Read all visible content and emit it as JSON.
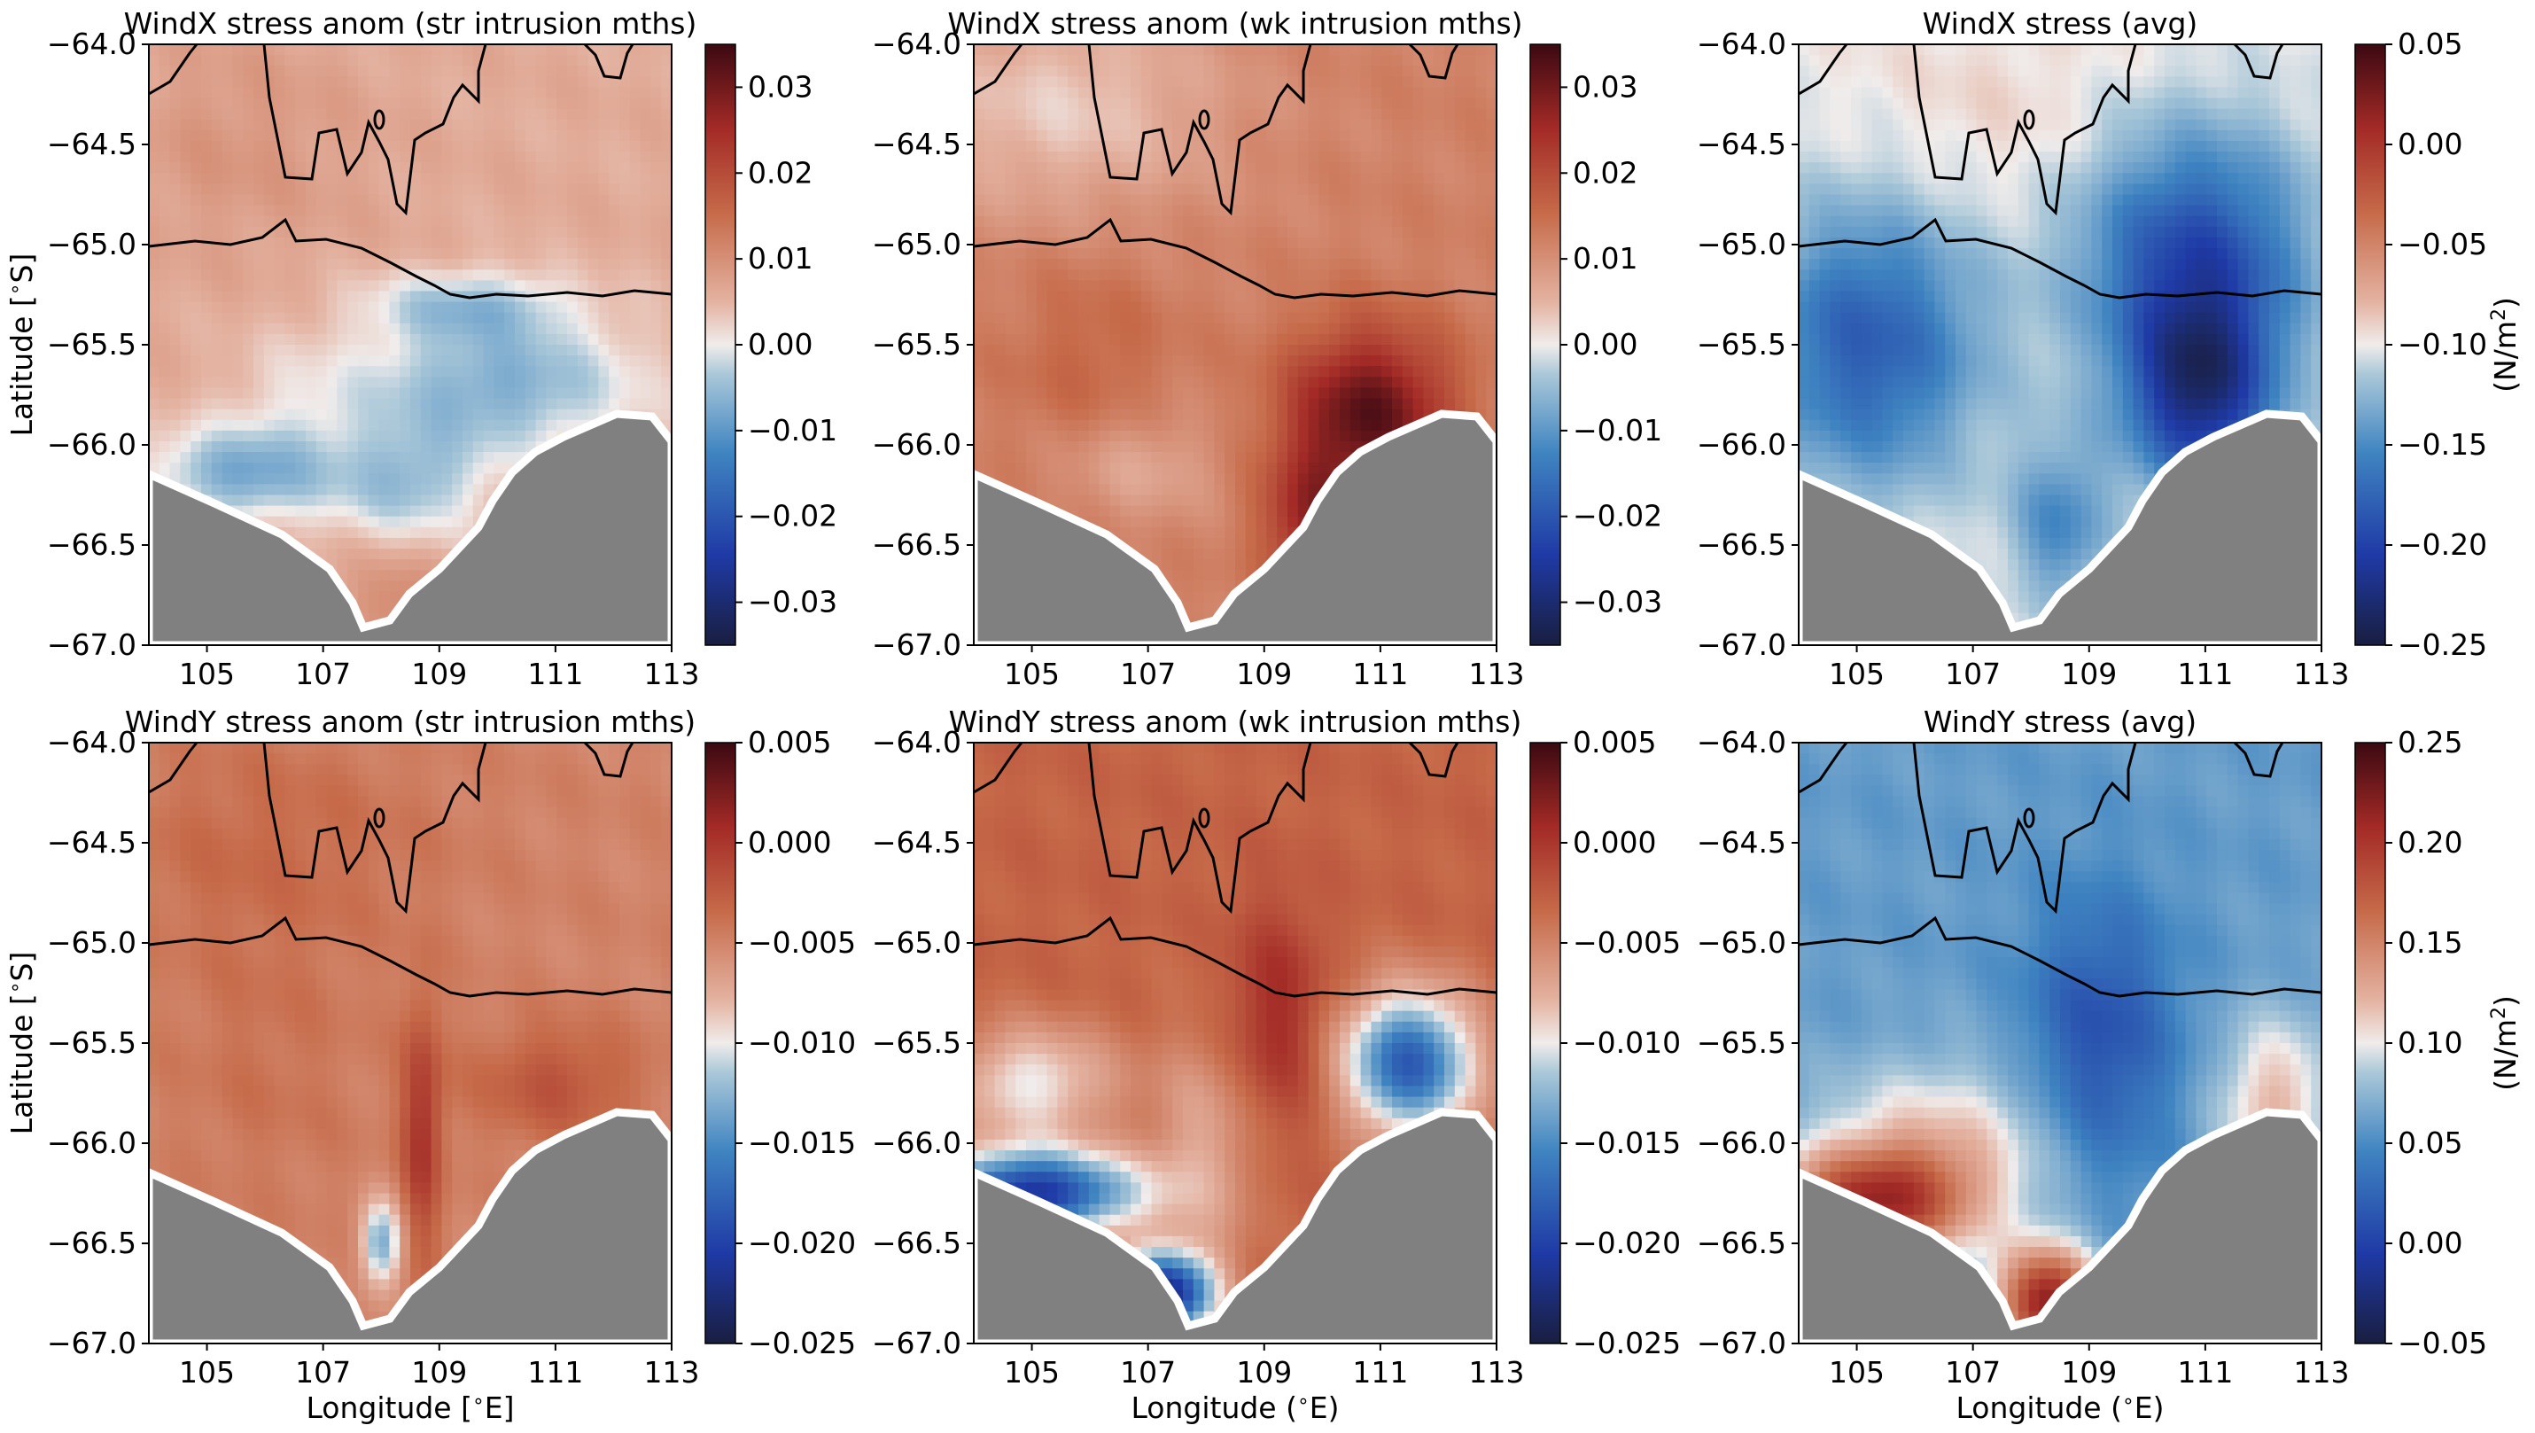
{
  "figure": {
    "land_color": "#808080",
    "coast_color": "#ffffff",
    "contour_color": "#000000",
    "colormap": "balance (navy-blue-white-red-maroon, diverging)"
  },
  "chart_data": [
    {
      "type": "heatmap",
      "title": "WindX stress anom (str intrusion mths)",
      "xlabel": "",
      "ylabel": "Latitude [$^\\circ$S]",
      "xlim": [
        104,
        113
      ],
      "ylim": [
        -67.0,
        -64.0
      ],
      "xticks": [
        "105",
        "107",
        "109",
        "111",
        "113"
      ],
      "yticks": [
        "−64.0",
        "−64.5",
        "−65.0",
        "−65.5",
        "−66.0",
        "−66.5",
        "−67.0"
      ],
      "colorbar": {
        "min": -0.035,
        "max": 0.035,
        "ticks": [
          "0.03",
          "0.02",
          "0.01",
          "0.00",
          "−0.01",
          "−0.02",
          "−0.03"
        ],
        "label": ""
      },
      "field": {
        "base": 0.006,
        "features": [
          {
            "x": 109.5,
            "y": -65.3,
            "amp": -0.009,
            "sx": 1.2,
            "sy": 0.12
          },
          {
            "x": 110.0,
            "y": -65.7,
            "amp": -0.013,
            "sx": 1.7,
            "sy": 0.25
          },
          {
            "x": 108.5,
            "y": -66.2,
            "amp": -0.01,
            "sx": 0.9,
            "sy": 0.2
          },
          {
            "x": 105.5,
            "y": -66.15,
            "amp": -0.012,
            "sx": 1.1,
            "sy": 0.16
          },
          {
            "x": 106.5,
            "y": -65.9,
            "amp": -0.004,
            "sx": 1.0,
            "sy": 0.3
          },
          {
            "x": 108.3,
            "y": -66.8,
            "amp": 0.005,
            "sx": 0.6,
            "sy": 0.2
          },
          {
            "x": 105.5,
            "y": -64.5,
            "amp": 0.003,
            "sx": 1.5,
            "sy": 0.4
          }
        ]
      }
    },
    {
      "type": "heatmap",
      "title": "WindX stress anom (wk intrusion mths)",
      "xlabel": "",
      "ylabel": "",
      "xlim": [
        104,
        113
      ],
      "ylim": [
        -67.0,
        -64.0
      ],
      "xticks": [
        "105",
        "107",
        "109",
        "111",
        "113"
      ],
      "yticks": [
        "−64.0",
        "−64.5",
        "−65.0",
        "−65.5",
        "−66.0",
        "−66.5",
        "−67.0"
      ],
      "colorbar": {
        "min": -0.035,
        "max": 0.035,
        "ticks": [
          "0.03",
          "0.02",
          "0.01",
          "0.00",
          "−0.01",
          "−0.02",
          "−0.03"
        ],
        "label": ""
      },
      "field": {
        "base": 0.012,
        "features": [
          {
            "x": 105.5,
            "y": -64.3,
            "amp": -0.009,
            "sx": 2.0,
            "sy": 0.4
          },
          {
            "x": 110.8,
            "y": -65.85,
            "amp": 0.02,
            "sx": 1.0,
            "sy": 0.3
          },
          {
            "x": 109.8,
            "y": -66.4,
            "amp": 0.013,
            "sx": 0.6,
            "sy": 0.25
          },
          {
            "x": 106.8,
            "y": -66.1,
            "amp": -0.006,
            "sx": 1.0,
            "sy": 0.2
          },
          {
            "x": 106.0,
            "y": -65.6,
            "amp": 0.004,
            "sx": 1.0,
            "sy": 0.4
          }
        ]
      }
    },
    {
      "type": "heatmap",
      "title": "WindX stress (avg)",
      "xlabel": "",
      "ylabel": "",
      "xlim": [
        104,
        113
      ],
      "ylim": [
        -67.0,
        -64.0
      ],
      "xticks": [
        "105",
        "107",
        "109",
        "111",
        "113"
      ],
      "yticks": [
        "−64.0",
        "−64.5",
        "−65.0",
        "−65.5",
        "−66.0",
        "−66.5",
        "−67.0"
      ],
      "colorbar": {
        "min": -0.25,
        "max": 0.05,
        "ticks": [
          "0.05",
          "0.00",
          "−0.05",
          "−0.10",
          "−0.15",
          "−0.20",
          "−0.25"
        ],
        "label": "(N/m$^2$)"
      },
      "field": {
        "base": -0.1,
        "features": [
          {
            "x": 110.8,
            "y": -65.05,
            "amp": -0.09,
            "sx": 1.4,
            "sy": 0.45
          },
          {
            "x": 110.9,
            "y": -65.75,
            "amp": -0.11,
            "sx": 0.9,
            "sy": 0.35
          },
          {
            "x": 105.2,
            "y": -65.5,
            "amp": -0.08,
            "sx": 1.4,
            "sy": 0.5
          },
          {
            "x": 108.5,
            "y": -66.4,
            "amp": -0.05,
            "sx": 0.6,
            "sy": 0.3
          },
          {
            "x": 107.5,
            "y": -64.4,
            "amp": 0.01,
            "sx": 2.0,
            "sy": 0.4
          }
        ]
      }
    },
    {
      "type": "heatmap",
      "title": "WindY stress anom (str intrusion mths)",
      "xlabel": "Longitude [$^\\circ$E]",
      "ylabel": "Latitude [$^\\circ$S]",
      "xlim": [
        104,
        113
      ],
      "ylim": [
        -67.0,
        -64.0
      ],
      "xticks": [
        "105",
        "107",
        "109",
        "111",
        "113"
      ],
      "yticks": [
        "−64.0",
        "−64.5",
        "−65.0",
        "−65.5",
        "−66.0",
        "−66.5",
        "−67.0"
      ],
      "colorbar": {
        "min": -0.025,
        "max": 0.005,
        "ticks": [
          "0.005",
          "0.000",
          "−0.005",
          "−0.010",
          "−0.015",
          "−0.020",
          "−0.025"
        ],
        "label": ""
      },
      "field": {
        "base": -0.005,
        "features": [
          {
            "x": 106.0,
            "y": -64.5,
            "amp": 0.0015,
            "sx": 2.0,
            "sy": 0.4
          },
          {
            "x": 108.7,
            "y": -65.95,
            "amp": 0.005,
            "sx": 0.25,
            "sy": 0.45
          },
          {
            "x": 111.0,
            "y": -65.7,
            "amp": 0.003,
            "sx": 1.0,
            "sy": 0.2
          },
          {
            "x": 108.0,
            "y": -66.5,
            "amp": -0.008,
            "sx": 0.25,
            "sy": 0.15
          },
          {
            "x": 106.0,
            "y": -65.6,
            "amp": 0.001,
            "sx": 1.2,
            "sy": 0.5
          }
        ]
      }
    },
    {
      "type": "heatmap",
      "title": "WindY stress anom (wk intrusion mths)",
      "xlabel": "Longitude ($^\\circ$E)",
      "ylabel": "",
      "xlim": [
        104,
        113
      ],
      "ylim": [
        -67.0,
        -64.0
      ],
      "xticks": [
        "105",
        "107",
        "109",
        "111",
        "113"
      ],
      "yticks": [
        "−64.0",
        "−64.5",
        "−65.0",
        "−65.5",
        "−66.0",
        "−66.5",
        "−67.0"
      ],
      "colorbar": {
        "min": -0.025,
        "max": 0.005,
        "ticks": [
          "0.005",
          "0.000",
          "−0.005",
          "−0.010",
          "−0.015",
          "−0.020",
          "−0.025"
        ],
        "label": ""
      },
      "field": {
        "base": -0.003,
        "features": [
          {
            "x": 109.2,
            "y": -65.4,
            "amp": 0.004,
            "sx": 0.6,
            "sy": 0.4
          },
          {
            "x": 111.5,
            "y": -65.6,
            "amp": -0.015,
            "sx": 0.8,
            "sy": 0.25
          },
          {
            "x": 105.0,
            "y": -66.25,
            "amp": -0.018,
            "sx": 1.3,
            "sy": 0.15
          },
          {
            "x": 107.3,
            "y": -66.75,
            "amp": -0.019,
            "sx": 0.6,
            "sy": 0.15
          },
          {
            "x": 105.0,
            "y": -65.7,
            "amp": -0.007,
            "sx": 1.0,
            "sy": 0.2
          },
          {
            "x": 108.0,
            "y": -66.0,
            "amp": -0.004,
            "sx": 0.7,
            "sy": 0.4
          }
        ]
      }
    },
    {
      "type": "heatmap",
      "title": "WindY stress (avg)",
      "xlabel": "Longitude ($^\\circ$E)",
      "ylabel": "",
      "xlim": [
        104,
        113
      ],
      "ylim": [
        -67.0,
        -64.0
      ],
      "xticks": [
        "105",
        "107",
        "109",
        "111",
        "113"
      ],
      "yticks": [
        "−64.0",
        "−64.5",
        "−65.0",
        "−65.5",
        "−66.0",
        "−66.5",
        "−67.0"
      ],
      "colorbar": {
        "min": -0.05,
        "max": 0.25,
        "ticks": [
          "0.25",
          "0.20",
          "0.15",
          "0.10",
          "0.05",
          "0.00",
          "−0.05"
        ],
        "label": "(N/m$^2$)"
      },
      "field": {
        "base": 0.06,
        "features": [
          {
            "x": 109.2,
            "y": -65.5,
            "amp": -0.05,
            "sx": 0.9,
            "sy": 0.5
          },
          {
            "x": 105.3,
            "y": -66.3,
            "amp": 0.13,
            "sx": 1.2,
            "sy": 0.2
          },
          {
            "x": 108.3,
            "y": -66.8,
            "amp": 0.16,
            "sx": 0.6,
            "sy": 0.2
          },
          {
            "x": 112.2,
            "y": -65.8,
            "amp": 0.06,
            "sx": 0.7,
            "sy": 0.3
          },
          {
            "x": 106.5,
            "y": -66.0,
            "amp": 0.05,
            "sx": 1.5,
            "sy": 0.3
          }
        ]
      }
    }
  ]
}
